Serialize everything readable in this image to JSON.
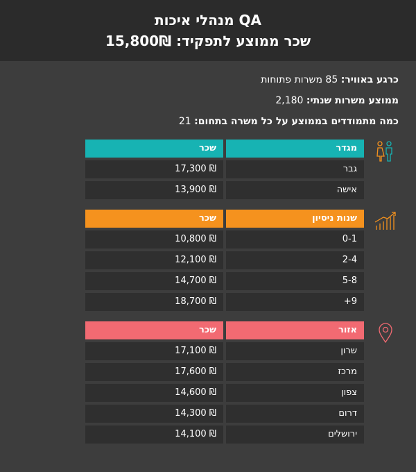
{
  "header": {
    "title": "QA מנהלי איכות",
    "subtitle_label": "שכר ממוצע לתפקיד:",
    "subtitle_value": "15,800₪"
  },
  "stats": [
    {
      "label": "כרגע באוויר:",
      "value": "85 משרות פתוחות"
    },
    {
      "label": "ממוצע משרות שנתי:",
      "value": "2,180"
    },
    {
      "label": "כמה מתמודדים בממוצע על כל משרה בתחום:",
      "value": "21"
    }
  ],
  "tables": {
    "gender": {
      "accent": "#17b3b3",
      "icon": "gender-icon",
      "col1": "מגדר",
      "col2": "שכר",
      "rows": [
        {
          "label": "גבר",
          "salary": "17,300 ₪"
        },
        {
          "label": "אישה",
          "salary": "13,900 ₪"
        }
      ]
    },
    "experience": {
      "accent": "#f5921e",
      "icon": "growth-chart-icon",
      "col1": "שנות ניסיון",
      "col2": "שכר",
      "rows": [
        {
          "label": "0-1",
          "salary": "10,800 ₪"
        },
        {
          "label": "2-4",
          "salary": "12,100 ₪"
        },
        {
          "label": "5-8",
          "salary": "14,700 ₪"
        },
        {
          "label": "+9",
          "salary": "18,700 ₪"
        }
      ]
    },
    "region": {
      "accent": "#f26a72",
      "icon": "location-pin-icon",
      "col1": "אזור",
      "col2": "שכר",
      "rows": [
        {
          "label": "שרון",
          "salary": "17,100 ₪"
        },
        {
          "label": "מרכז",
          "salary": "17,600 ₪"
        },
        {
          "label": "צפון",
          "salary": "14,600 ₪"
        },
        {
          "label": "דרום",
          "salary": "14,300 ₪"
        },
        {
          "label": "ירושלים",
          "salary": "14,100 ₪"
        }
      ]
    }
  }
}
